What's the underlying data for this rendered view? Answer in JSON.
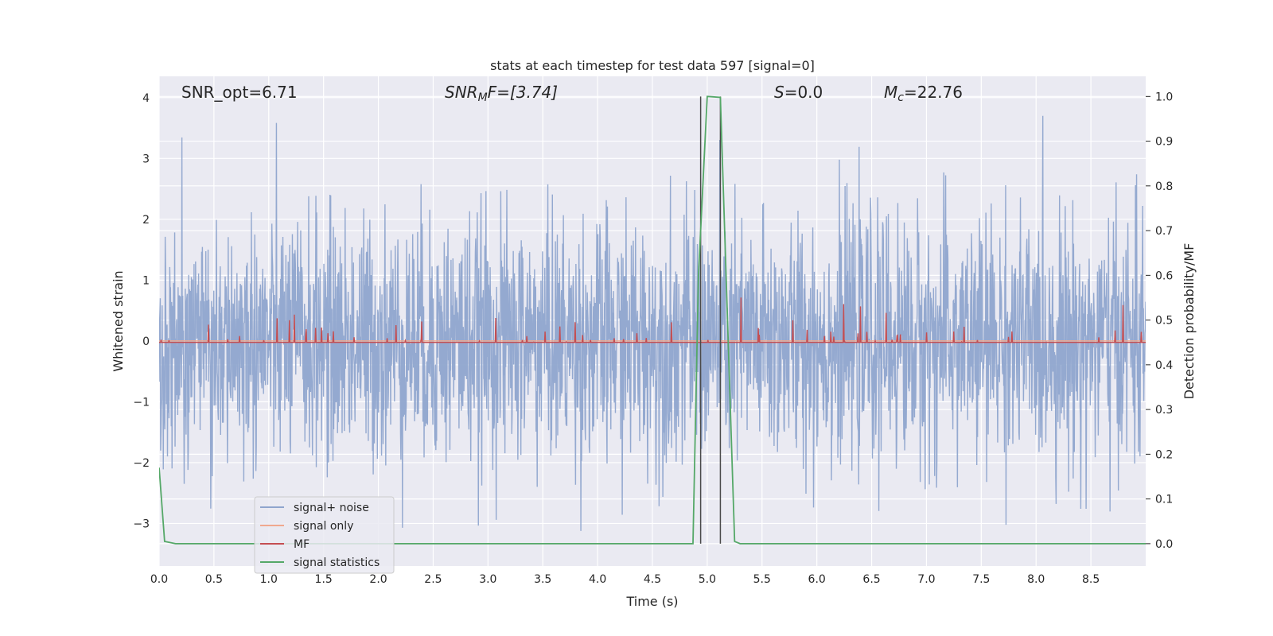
{
  "chart_data": {
    "type": "line",
    "title": "stats at each timestep for test data 597 [signal=0]",
    "xlabel": "Time (s)",
    "ylabel": "Whitened strain",
    "y2label": "Detection probability/MF",
    "xlim": [
      0.0,
      9.0
    ],
    "ylim": [
      -3.7,
      4.35
    ],
    "y2lim": [
      -0.05,
      1.045
    ],
    "xticks": [
      "0.0",
      "0.5",
      "1.0",
      "1.5",
      "2.0",
      "2.5",
      "3.0",
      "3.5",
      "4.0",
      "4.5",
      "5.0",
      "5.5",
      "6.0",
      "6.5",
      "7.0",
      "7.5",
      "8.0",
      "8.5"
    ],
    "yticks": [
      "4",
      "3",
      "2",
      "1",
      "0",
      "−1",
      "−2",
      "−3"
    ],
    "y2ticks": [
      "1.0",
      "0.9",
      "0.8",
      "0.7",
      "0.6",
      "0.5",
      "0.4",
      "0.3",
      "0.2",
      "0.1",
      "0.0"
    ],
    "grid": true,
    "legend_position": "lower-left",
    "annotations": {
      "snr_opt": "SNR_opt=6.71",
      "snr_mf_main": "SNR",
      "snr_mf_sub": "M",
      "snr_mf_rest": "F=[3.74]",
      "s_main": "S",
      "s_rest": "=0.0",
      "mc_main": "M",
      "mc_sub": "c",
      "mc_rest": "=22.76"
    },
    "series": [
      {
        "name": "signal+ noise",
        "color": "#8fa5cd",
        "mean": 0.0,
        "std": 1.0
      },
      {
        "name": "signal only",
        "color": "#f0a88e",
        "values_constant": 0.0
      },
      {
        "name": "MF",
        "color": "#c44e52",
        "mean": 0.3,
        "std": 0.15
      },
      {
        "name": "signal statistics",
        "color": "#55a868",
        "x": [
          0.0,
          0.05,
          0.15,
          4.87,
          4.92,
          5.0,
          5.12,
          5.25,
          5.3,
          9.0
        ],
        "values": [
          0.17,
          0.005,
          0.0,
          0.0,
          0.6,
          1.0,
          0.998,
          0.005,
          0.0,
          0.0
        ]
      }
    ],
    "vlines_x": [
      4.94,
      5.12
    ],
    "vline_color": "#4a4a4a"
  }
}
